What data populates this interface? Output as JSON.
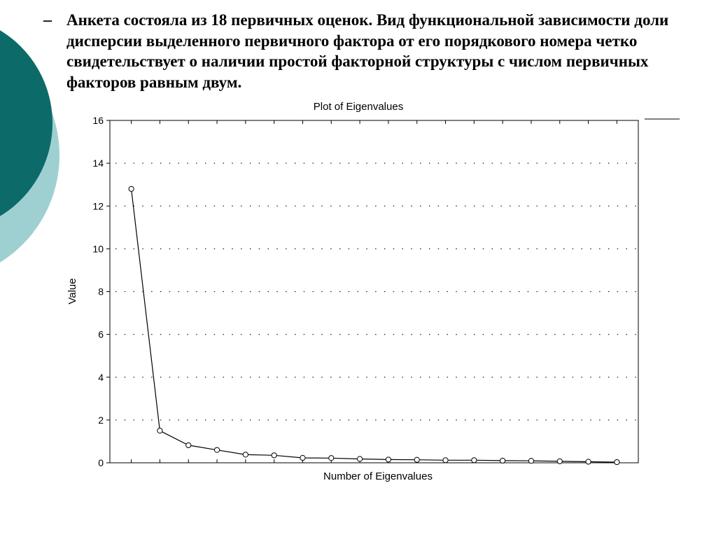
{
  "slide": {
    "bullet_marker": "–",
    "text": "Анкета состояла из 18 первичных оценок. Вид функциональной зависимости доли дисперсии выделенного первичного фактора от его порядкового номера четко свидетельствует о наличии простой факторной структуры с числом первичных факторов равным двум."
  },
  "colors": {
    "decor_dark": "#0c6b68",
    "decor_light": "#9fd0d1",
    "line": "#000000"
  },
  "chart_data": {
    "type": "line",
    "title": "Plot of Eigenvalues",
    "xlabel": "Number of Eigenvalues",
    "ylabel": "Value",
    "x": [
      1,
      2,
      3,
      4,
      5,
      6,
      7,
      8,
      9,
      10,
      11,
      12,
      13,
      14,
      15,
      16,
      17,
      18
    ],
    "values": [
      12.8,
      1.5,
      0.82,
      0.6,
      0.38,
      0.35,
      0.23,
      0.22,
      0.18,
      0.15,
      0.14,
      0.12,
      0.12,
      0.1,
      0.09,
      0.07,
      0.05,
      0.03
    ],
    "ylim": [
      0,
      16
    ],
    "yticks": [
      0,
      2,
      4,
      6,
      8,
      10,
      12,
      14,
      16
    ],
    "xlim": [
      0.25,
      18.75
    ],
    "grid": true,
    "markers": "open-circle"
  }
}
